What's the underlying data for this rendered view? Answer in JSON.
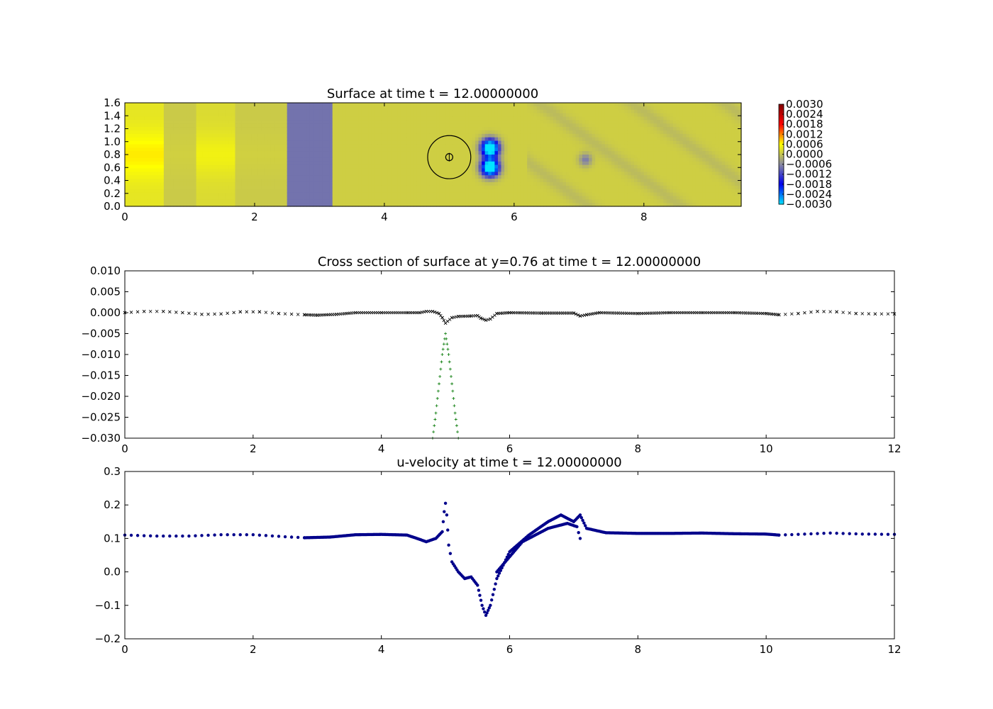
{
  "chart_data": [
    {
      "type": "heatmap",
      "title": "Surface at time t =    12.00000000",
      "xlim": [
        0,
        9.5
      ],
      "ylim": [
        0,
        1.6
      ],
      "xticks": [
        "0",
        "2",
        "4",
        "6",
        "8"
      ],
      "yticks": [
        "0.0",
        "0.2",
        "0.4",
        "0.6",
        "0.8",
        "1.0",
        "1.2",
        "1.4",
        "1.6"
      ],
      "colorbar": {
        "range": [
          -0.003,
          0.003
        ],
        "ticks": [
          "0.0030",
          "0.0024",
          "0.0018",
          "0.0012",
          "0.0006",
          "0.0000",
          "−0.0006",
          "−0.0012",
          "−0.0018",
          "−0.0024",
          "−0.0030"
        ],
        "colors": [
          "#00e5ff",
          "#0000ee",
          "#8a8aa0",
          "#ffff00",
          "#ff0000",
          "#800000"
        ]
      },
      "features": {
        "gauge_circle": {
          "x": 5.0,
          "y": 0.76,
          "r": 0.35
        },
        "depressions": [
          {
            "x": 5.63,
            "y": 0.9,
            "value": -0.003
          },
          {
            "x": 5.63,
            "y": 0.6,
            "value": -0.003
          },
          {
            "x": 7.1,
            "y": 0.72,
            "value": -0.0006
          }
        ],
        "bands": [
          {
            "x_from": 0,
            "x_to": 0.6,
            "value": 0.0006
          },
          {
            "x_from": 1.1,
            "x_to": 1.7,
            "value": 0.0004
          },
          {
            "x_from": 2.5,
            "x_to": 3.2,
            "value": -0.0008
          },
          {
            "x_from": 3.2,
            "x_to": 9.5,
            "value": 0.0001
          }
        ]
      }
    },
    {
      "type": "scatter",
      "title": "Cross section of surface at y=0.76 at time t =    12.00000000",
      "xlim": [
        0,
        12
      ],
      "ylim": [
        -0.03,
        0.01
      ],
      "xticks": [
        "0",
        "2",
        "4",
        "6",
        "8",
        "10",
        "12"
      ],
      "yticks": [
        "0.010",
        "0.005",
        "0.000",
        "−0.005",
        "−0.010",
        "−0.015",
        "−0.020",
        "−0.025",
        "−0.030"
      ],
      "series": [
        {
          "marker": "x",
          "color": "#000000",
          "points": [
            [
              0.0,
              0.0
            ],
            [
              0.3,
              0.0003
            ],
            [
              0.6,
              0.0003
            ],
            [
              0.9,
              0.0
            ],
            [
              1.2,
              -0.0004
            ],
            [
              1.5,
              -0.0003
            ],
            [
              1.8,
              0.0002
            ],
            [
              2.1,
              0.0002
            ],
            [
              2.4,
              -0.0002
            ],
            [
              2.8,
              -0.0005
            ],
            [
              3.0,
              -0.0006
            ],
            [
              3.3,
              -0.0004
            ],
            [
              3.6,
              0.0
            ],
            [
              4.0,
              0.0
            ],
            [
              4.4,
              0.0
            ],
            [
              4.6,
              0.0
            ],
            [
              4.7,
              0.0003
            ],
            [
              4.8,
              0.0003
            ],
            [
              4.9,
              -0.0002
            ],
            [
              4.95,
              -0.0012
            ],
            [
              5.0,
              -0.0025
            ],
            [
              5.1,
              -0.0012
            ],
            [
              5.2,
              -0.0009
            ],
            [
              5.4,
              -0.0008
            ],
            [
              5.5,
              -0.0007
            ],
            [
              5.55,
              -0.0013
            ],
            [
              5.63,
              -0.0018
            ],
            [
              5.7,
              -0.0015
            ],
            [
              5.8,
              -0.0002
            ],
            [
              6.0,
              0.0
            ],
            [
              6.5,
              -0.0001
            ],
            [
              7.0,
              -0.0001
            ],
            [
              7.1,
              -0.0008
            ],
            [
              7.2,
              -0.0005
            ],
            [
              7.4,
              0.0
            ],
            [
              8.0,
              -0.0002
            ],
            [
              8.5,
              0.0
            ],
            [
              9.0,
              0.0
            ],
            [
              9.5,
              0.0
            ],
            [
              10.0,
              -0.0002
            ],
            [
              10.2,
              -0.0005
            ],
            [
              10.5,
              -0.0002
            ],
            [
              10.8,
              0.0003
            ],
            [
              11.1,
              0.0002
            ],
            [
              11.4,
              -0.0002
            ],
            [
              11.7,
              -0.0003
            ],
            [
              12.0,
              -0.0003
            ]
          ]
        },
        {
          "marker": "+",
          "color": "#007700",
          "points": [
            [
              4.8,
              -0.03
            ],
            [
              4.85,
              -0.024
            ],
            [
              4.9,
              -0.017
            ],
            [
              4.95,
              -0.01
            ],
            [
              5.0,
              -0.005
            ],
            [
              5.05,
              -0.01
            ],
            [
              5.1,
              -0.017
            ],
            [
              5.15,
              -0.024
            ],
            [
              5.2,
              -0.03
            ]
          ]
        }
      ]
    },
    {
      "type": "scatter",
      "title": "u-velocity at time t =    12.00000000",
      "xlim": [
        0,
        12
      ],
      "ylim": [
        -0.2,
        0.3
      ],
      "xticks": [
        "0",
        "2",
        "4",
        "6",
        "8",
        "10",
        "12"
      ],
      "yticks": [
        "0.3",
        "0.2",
        "0.1",
        "0.0",
        "−0.1",
        "−0.2"
      ],
      "series": [
        {
          "marker": "o",
          "color": "#00008b",
          "points": [
            [
              0.0,
              0.11
            ],
            [
              0.5,
              0.107
            ],
            [
              1.0,
              0.107
            ],
            [
              1.5,
              0.111
            ],
            [
              2.0,
              0.111
            ],
            [
              2.5,
              0.105
            ],
            [
              2.8,
              0.102
            ],
            [
              3.2,
              0.104
            ],
            [
              3.6,
              0.111
            ],
            [
              4.0,
              0.112
            ],
            [
              4.4,
              0.11
            ],
            [
              4.6,
              0.097
            ],
            [
              4.7,
              0.09
            ],
            [
              4.85,
              0.1
            ],
            [
              4.95,
              0.12
            ],
            [
              4.98,
              0.18
            ],
            [
              5.0,
              0.205
            ],
            [
              5.02,
              0.17
            ],
            [
              5.05,
              0.08
            ],
            [
              5.1,
              0.03
            ],
            [
              5.2,
              0.0
            ],
            [
              5.3,
              -0.02
            ],
            [
              5.4,
              -0.015
            ],
            [
              5.5,
              -0.04
            ],
            [
              5.57,
              -0.1
            ],
            [
              5.63,
              -0.13
            ],
            [
              5.7,
              -0.1
            ],
            [
              5.8,
              -0.02
            ],
            [
              6.0,
              0.06
            ],
            [
              6.3,
              0.11
            ],
            [
              6.6,
              0.15
            ],
            [
              6.8,
              0.17
            ],
            [
              7.0,
              0.15
            ],
            [
              7.1,
              0.17
            ],
            [
              7.2,
              0.13
            ],
            [
              7.5,
              0.117
            ],
            [
              8.0,
              0.115
            ],
            [
              8.5,
              0.115
            ],
            [
              9.0,
              0.116
            ],
            [
              9.5,
              0.114
            ],
            [
              10.0,
              0.113
            ],
            [
              10.2,
              0.11
            ],
            [
              10.5,
              0.112
            ],
            [
              11.0,
              0.116
            ],
            [
              11.5,
              0.113
            ],
            [
              12.0,
              0.112
            ]
          ]
        },
        {
          "marker": "o",
          "color": "#00008b",
          "points": [
            [
              5.8,
              0.0
            ],
            [
              6.2,
              0.09
            ],
            [
              6.6,
              0.13
            ],
            [
              6.9,
              0.145
            ],
            [
              7.05,
              0.135
            ],
            [
              7.1,
              0.1
            ]
          ]
        }
      ]
    }
  ]
}
